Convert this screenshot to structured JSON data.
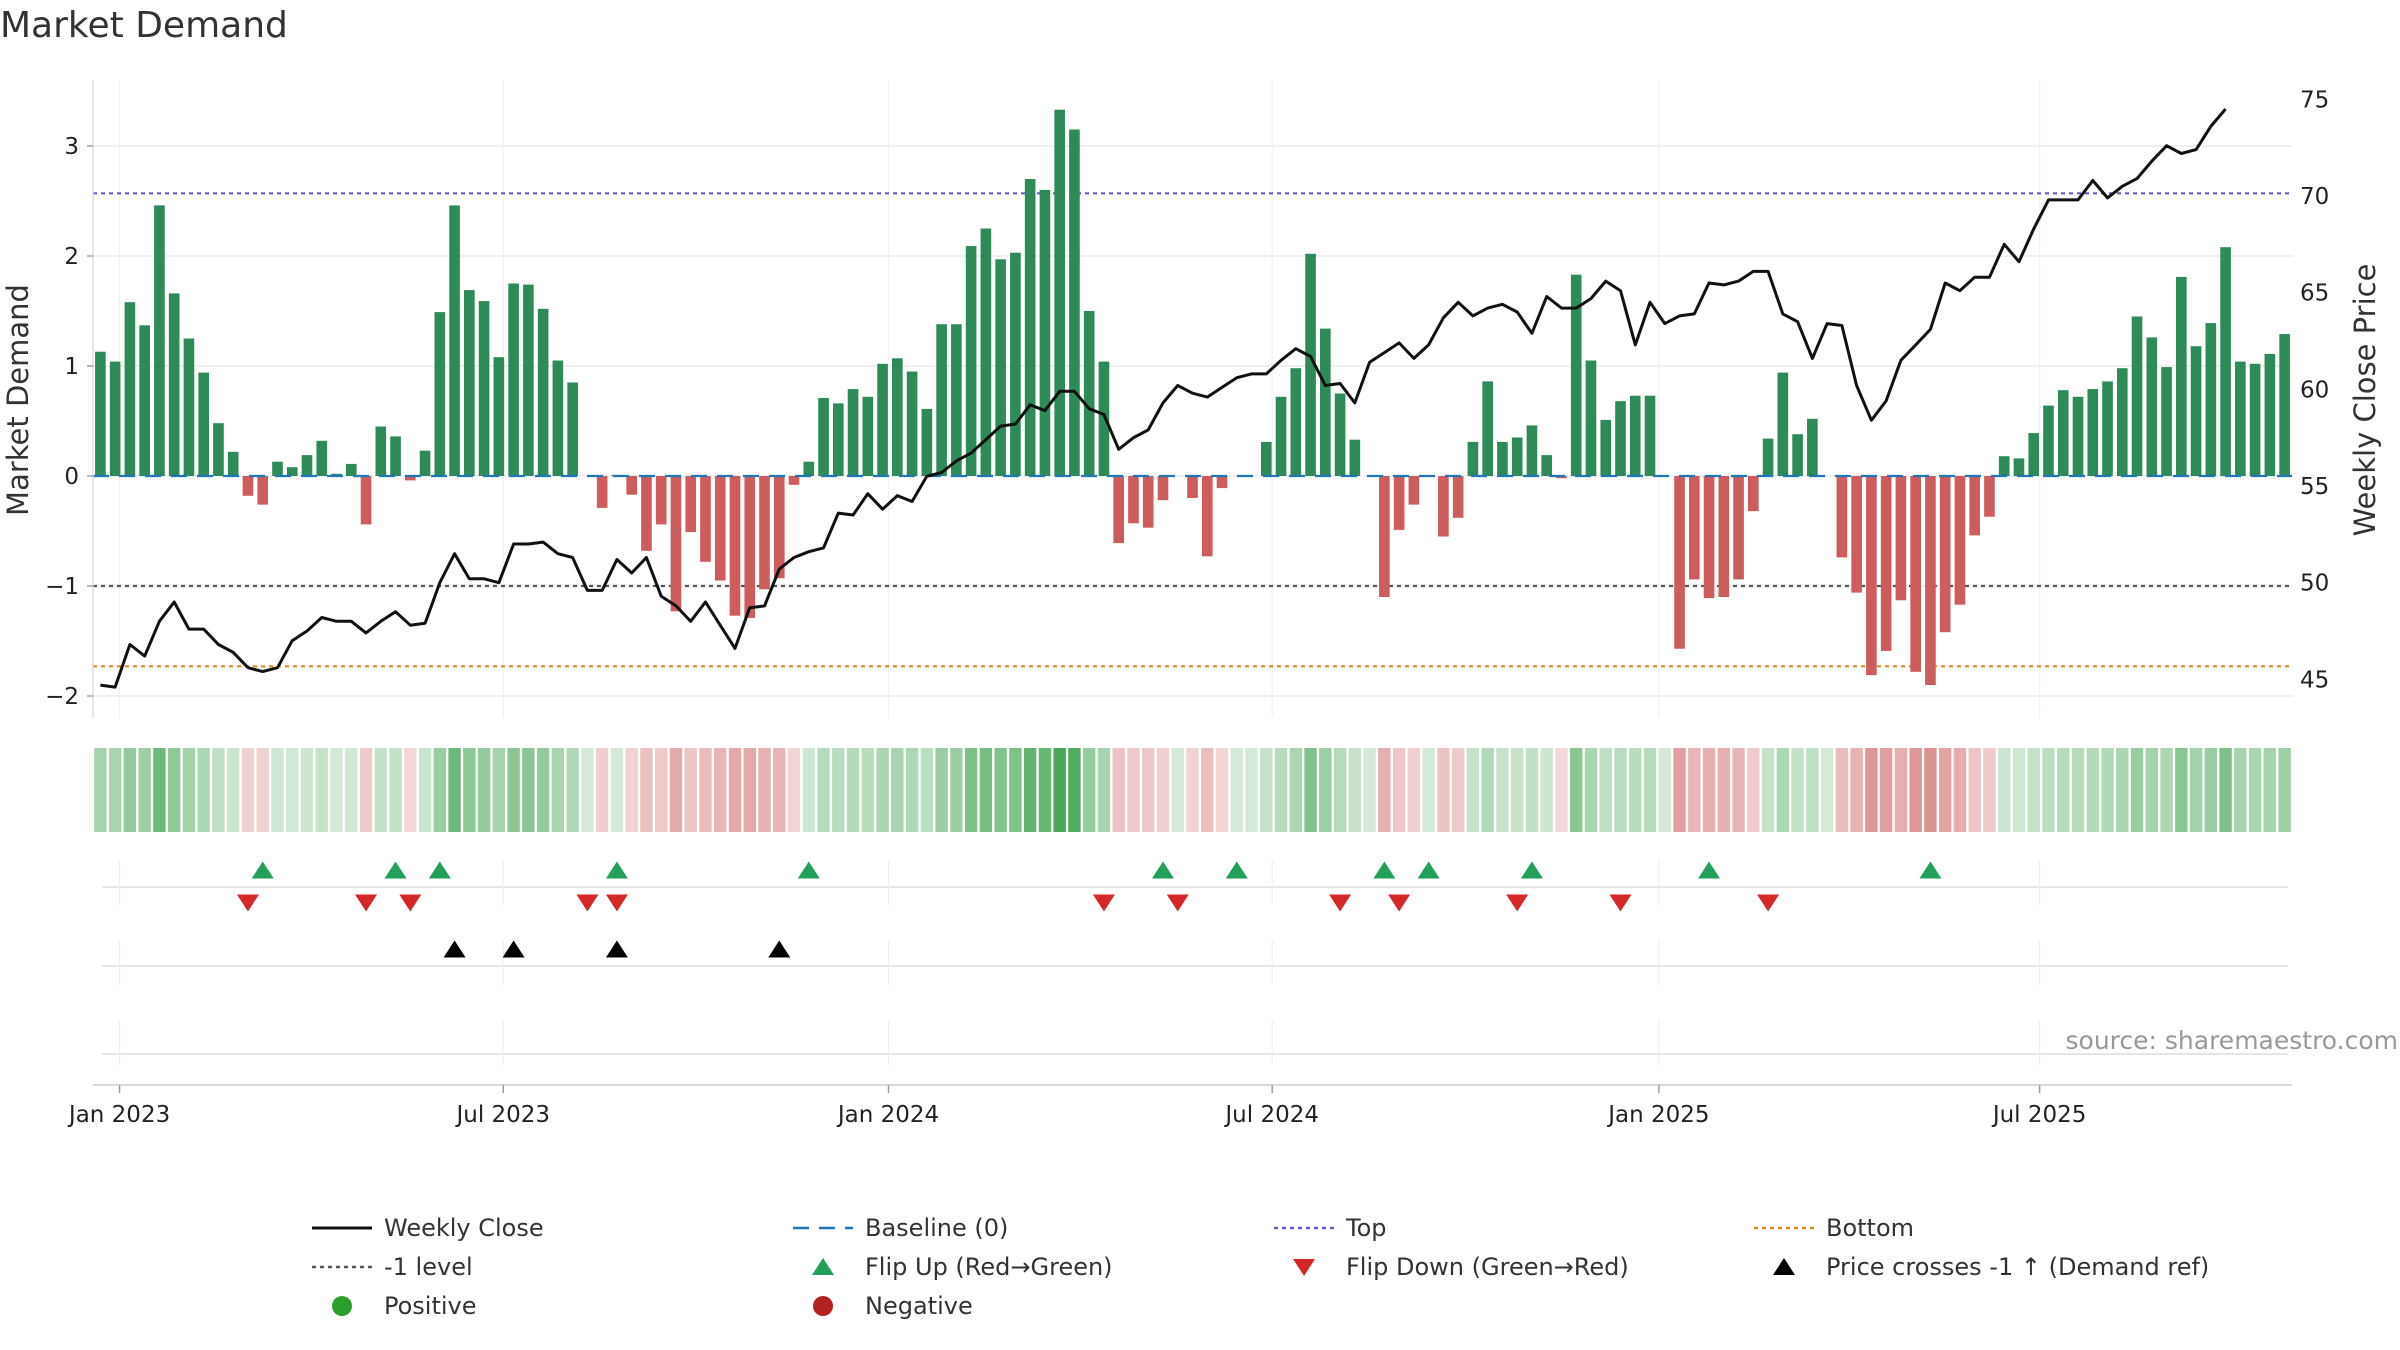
{
  "chart_data": {
    "type": "bar",
    "title": "Market Demand",
    "ylabel": "Market Demand",
    "y2label": "Weekly Close Price",
    "ylim": [
      -2.2,
      3.6
    ],
    "y2lim": [
      43,
      76
    ],
    "yticks": [
      -2,
      -1,
      0,
      1,
      2,
      3
    ],
    "yticklabels": [
      "−2",
      "−1",
      "0",
      "1",
      "2",
      "3"
    ],
    "y2ticks": [
      45,
      50,
      55,
      60,
      65,
      70,
      75
    ],
    "xticks": [
      {
        "label": "Jan 2023",
        "week": 1.3
      },
      {
        "label": "Jul 2023",
        "week": 27.3
      },
      {
        "label": "Jan 2024",
        "week": 53.4
      },
      {
        "label": "Jul 2024",
        "week": 79.4
      },
      {
        "label": "Jan 2025",
        "week": 105.6
      },
      {
        "label": "Jul 2025",
        "week": 131.4
      }
    ],
    "reference_lines": {
      "top": 2.57,
      "minus_one": -1,
      "bottom": -1.73,
      "baseline": 0
    },
    "demand": [
      1.13,
      1.04,
      1.58,
      1.37,
      2.46,
      1.66,
      1.25,
      0.94,
      0.48,
      0.22,
      -0.18,
      -0.26,
      0.13,
      0.08,
      0.19,
      0.32,
      0.02,
      0.11,
      -0.44,
      0.45,
      0.36,
      -0.04,
      0.23,
      1.49,
      2.46,
      1.69,
      1.59,
      1.08,
      1.75,
      1.74,
      1.52,
      1.05,
      0.85,
      0.0,
      -0.29,
      0.01,
      -0.17,
      -0.68,
      -0.44,
      -1.23,
      -0.51,
      -0.78,
      -0.95,
      -1.27,
      -1.29,
      -1.03,
      -0.93,
      -0.08,
      0.13,
      0.71,
      0.66,
      0.79,
      0.72,
      1.02,
      1.07,
      0.95,
      0.61,
      1.38,
      1.38,
      2.09,
      2.25,
      1.97,
      2.03,
      2.7,
      2.6,
      3.33,
      3.15,
      1.5,
      1.04,
      -0.61,
      -0.43,
      -0.47,
      -0.22,
      0.0,
      -0.2,
      -0.73,
      -0.11,
      0.0,
      0.0,
      0.31,
      0.72,
      0.98,
      2.02,
      1.34,
      0.75,
      0.33,
      0.0,
      -1.1,
      -0.49,
      -0.26,
      0.0,
      -0.55,
      -0.38,
      0.31,
      0.86,
      0.31,
      0.35,
      0.46,
      0.19,
      -0.02,
      1.83,
      1.05,
      0.51,
      0.68,
      0.73,
      0.73,
      0.0,
      -1.57,
      -0.94,
      -1.11,
      -1.1,
      -0.94,
      -0.32,
      0.34,
      0.94,
      0.38,
      0.52,
      0.0,
      -0.74,
      -1.06,
      -1.81,
      -1.59,
      -1.13,
      -1.78,
      -1.9,
      -1.42,
      -1.17,
      -0.54,
      -0.37,
      0.18,
      0.16,
      0.39,
      0.64,
      0.78,
      0.72,
      0.79,
      0.86,
      0.98,
      1.45,
      1.26,
      0.99,
      1.81,
      1.18,
      1.39,
      2.08,
      1.04,
      1.02,
      1.11,
      1.29
    ],
    "weekly_close": [
      44.7,
      44.6,
      46.8,
      46.2,
      48.0,
      49.0,
      47.6,
      47.6,
      46.8,
      46.4,
      45.6,
      45.4,
      45.6,
      47.0,
      47.5,
      48.2,
      48.0,
      48.0,
      47.4,
      48.0,
      48.5,
      47.8,
      47.9,
      50.0,
      51.5,
      50.2,
      50.2,
      50.0,
      52.0,
      52.0,
      52.1,
      51.5,
      51.3,
      49.6,
      49.6,
      51.2,
      50.5,
      51.3,
      49.3,
      48.8,
      48.0,
      49.0,
      47.8,
      46.6,
      48.7,
      48.8,
      50.7,
      51.3,
      51.6,
      51.8,
      53.6,
      53.5,
      54.6,
      53.8,
      54.5,
      54.2,
      55.5,
      55.7,
      56.3,
      56.7,
      57.4,
      58.1,
      58.2,
      59.2,
      58.9,
      59.9,
      59.9,
      59.0,
      58.7,
      56.9,
      57.5,
      57.9,
      59.3,
      60.2,
      59.8,
      59.6,
      60.1,
      60.6,
      60.8,
      60.8,
      61.5,
      62.1,
      61.7,
      60.2,
      60.3,
      59.3,
      61.4,
      61.9,
      62.4,
      61.6,
      62.3,
      63.7,
      64.5,
      63.8,
      64.2,
      64.4,
      64.0,
      62.9,
      64.8,
      64.2,
      64.2,
      64.7,
      65.6,
      65.1,
      62.3,
      64.5,
      63.4,
      63.8,
      63.9,
      65.5,
      65.4,
      65.6,
      66.1,
      66.1,
      63.9,
      63.5,
      61.6,
      63.4,
      63.3,
      60.2,
      58.4,
      59.4,
      61.5,
      62.3,
      63.1,
      65.5,
      65.1,
      65.8,
      65.8,
      67.5,
      66.6,
      68.3,
      69.8,
      69.8,
      69.8,
      70.8,
      69.9,
      70.5,
      70.9,
      71.8,
      72.6,
      72.2,
      72.4,
      73.6,
      74.5
    ],
    "strip_shading_note": "per-week colour intensity proportional to demand value",
    "markers": {
      "flip_up": [
        11,
        20,
        23,
        35,
        48,
        72,
        77,
        87,
        90,
        97,
        109,
        124
      ],
      "flip_down": [
        10,
        18,
        21,
        33,
        35,
        68,
        73,
        84,
        88,
        96,
        103,
        113
      ],
      "price_cross": [
        24,
        28,
        35,
        46
      ]
    },
    "legend": [
      {
        "label": "Weekly Close",
        "kind": "line-solid",
        "color": "#111111"
      },
      {
        "label": "Baseline (0)",
        "kind": "line-dash",
        "color": "#1f77b4"
      },
      {
        "label": "Top",
        "kind": "line-dot",
        "color": "#6a5acd"
      },
      {
        "label": "Bottom",
        "kind": "line-dot",
        "color": "#e08a1e"
      },
      {
        "label": "-1 level",
        "kind": "line-dot",
        "color": "#555555"
      },
      {
        "label": "Flip Up (Red→Green)",
        "kind": "tri-up",
        "color": "#22a05a"
      },
      {
        "label": "Flip Down (Green→Red)",
        "kind": "tri-down",
        "color": "#d62728"
      },
      {
        "label": "Price crosses -1 ↑ (Demand ref)",
        "kind": "tri-up",
        "color": "#000000"
      },
      {
        "label": "Positive",
        "kind": "dot",
        "color": "#2ca02c"
      },
      {
        "label": "Negative",
        "kind": "dot",
        "color": "#b22222"
      }
    ],
    "source": "source: sharemaestro.com"
  },
  "colors": {
    "positive_bar": "#2e8b57",
    "negative_bar": "#cd5c5c",
    "strip_green": "#3aa04a",
    "strip_red": "#c85050",
    "grid": "#e8e8e8"
  }
}
